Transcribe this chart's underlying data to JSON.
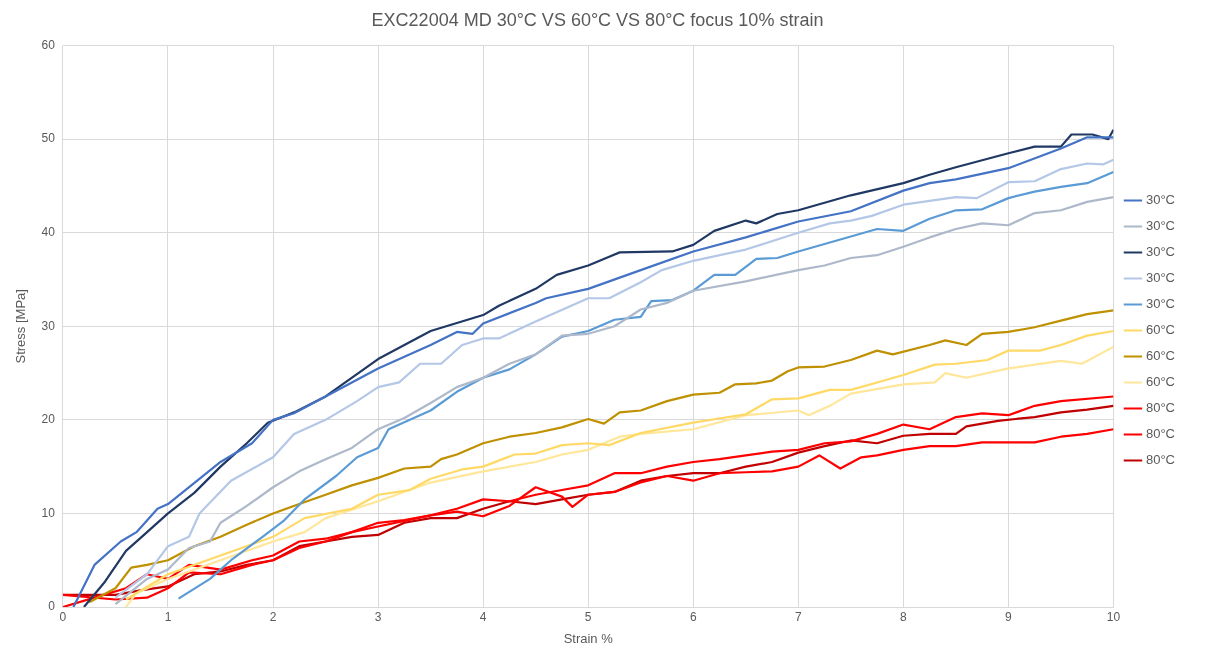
{
  "chart_data": {
    "type": "line",
    "title": "EXC22004 MD 30°C VS 60°C VS 80°C focus 10% strain",
    "xlabel": "Strain %",
    "ylabel": "Stress [MPa]",
    "xlim": [
      0,
      10
    ],
    "xticks": [
      0,
      1,
      2,
      3,
      4,
      5,
      6,
      7,
      8,
      9,
      10
    ],
    "ylim": [
      0,
      60
    ],
    "yticks": [
      0,
      10,
      20,
      30,
      40,
      50,
      60
    ],
    "grid": true,
    "legend": "right",
    "marker": "none",
    "line_style": "solid",
    "series": [
      {
        "name": "30°C",
        "color": "#4472c4",
        "x": [
          0.1,
          0.3,
          0.55,
          0.7,
          0.9,
          1,
          1.5,
          1.8,
          2,
          2.2,
          2.5,
          3,
          3.5,
          3.75,
          3.9,
          4,
          4.5,
          4.6,
          5,
          5.5,
          6,
          6.5,
          7,
          7.5,
          8,
          8.25,
          8.5,
          9,
          9.5,
          9.75,
          10
        ],
        "values": [
          0,
          4.5,
          7,
          8,
          10.5,
          11,
          15.5,
          17.5,
          20,
          20.7,
          22.5,
          25.5,
          28,
          29.4,
          29.2,
          30.3,
          32.5,
          33,
          34,
          36,
          38,
          39.5,
          41.2,
          42.3,
          44.5,
          45.3,
          45.7,
          46.9,
          49,
          50.2,
          50.2
        ]
      },
      {
        "name": "30°C",
        "color": "#adb9ca",
        "x": [
          0.5,
          0.8,
          1,
          1.2,
          1.4,
          1.5,
          1.75,
          2,
          2.25,
          2.5,
          2.75,
          3,
          3.25,
          3.5,
          3.75,
          4,
          4.25,
          4.5,
          4.75,
          5,
          5.25,
          5.5,
          5.75,
          6,
          6.5,
          7,
          7.25,
          7.5,
          7.75,
          8,
          8.25,
          8.5,
          8.75,
          9,
          9.25,
          9.5,
          9.75,
          10
        ],
        "values": [
          0.3,
          3,
          4,
          6.3,
          7,
          9,
          10.8,
          12.8,
          14.5,
          15.8,
          17,
          19,
          20.2,
          21.8,
          23.5,
          24.5,
          26,
          27,
          29,
          29.2,
          30,
          31.8,
          32.5,
          33.8,
          34.8,
          36,
          36.5,
          37.3,
          37.6,
          38.5,
          39.5,
          40.4,
          41,
          40.8,
          42.1,
          42.4,
          43.3,
          43.8
        ]
      },
      {
        "name": "30°C",
        "color": "#203864",
        "x": [
          0.2,
          0.4,
          0.6,
          0.75,
          1,
          1.25,
          1.5,
          1.75,
          1.95,
          2.2,
          2.5,
          3,
          3.5,
          4,
          4.15,
          4.5,
          4.7,
          5,
          5.3,
          5.8,
          6,
          6.2,
          6.5,
          6.6,
          6.8,
          7,
          7.5,
          8,
          8.25,
          8.5,
          9,
          9.25,
          9.5,
          9.6,
          9.8,
          9.95,
          10
        ],
        "values": [
          0,
          2.7,
          6,
          7.5,
          10,
          12.2,
          15,
          17.5,
          19.7,
          20.8,
          22.5,
          26.5,
          29.5,
          31.2,
          32.2,
          34,
          35.5,
          36.5,
          37.9,
          38,
          38.7,
          40.2,
          41.3,
          41,
          42,
          42.4,
          44,
          45.3,
          46.2,
          47,
          48.5,
          49.2,
          49.2,
          50.5,
          50.5,
          50,
          51
        ]
      },
      {
        "name": "30°C",
        "color": "#b4c7e7",
        "x": [
          0.5,
          0.8,
          1,
          1.2,
          1.3,
          1.6,
          2,
          2.2,
          2.5,
          2.8,
          3,
          3.2,
          3.4,
          3.6,
          3.8,
          4,
          4.15,
          4.5,
          5,
          5.2,
          5.5,
          5.7,
          6,
          6.5,
          7,
          7.3,
          7.5,
          7.7,
          8,
          8.5,
          8.7,
          9,
          9.25,
          9.5,
          9.75,
          9.9,
          10
        ],
        "values": [
          1,
          3.5,
          6.5,
          7.5,
          10,
          13.5,
          16,
          18.5,
          20,
          22,
          23.5,
          24,
          26,
          26,
          28,
          28.7,
          28.7,
          30.5,
          33,
          33,
          34.7,
          36,
          37,
          38.2,
          40,
          41,
          41.3,
          41.8,
          43,
          43.8,
          43.7,
          45.4,
          45.5,
          46.8,
          47.4,
          47.3,
          47.8
        ]
      },
      {
        "name": "30°C",
        "color": "#5b9bd5",
        "x": [
          1.1,
          1.4,
          1.6,
          1.9,
          2.1,
          2.3,
          2.6,
          2.8,
          3,
          3.1,
          3.5,
          3.75,
          4,
          4.25,
          4.5,
          4.75,
          5,
          5.25,
          5.5,
          5.6,
          5.8,
          6,
          6.2,
          6.4,
          6.6,
          6.8,
          7,
          7.5,
          7.75,
          8,
          8.25,
          8.5,
          8.75,
          9,
          9.25,
          9.5,
          9.75,
          10
        ],
        "values": [
          0.9,
          3,
          5,
          7.5,
          9.2,
          11.5,
          14,
          16,
          17,
          19,
          21,
          23,
          24.5,
          25.4,
          27,
          28.9,
          29.5,
          30.7,
          31,
          32.7,
          32.8,
          33.8,
          35.5,
          35.5,
          37.2,
          37.3,
          38,
          39.6,
          40.4,
          40.2,
          41.5,
          42.4,
          42.5,
          43.7,
          44.4,
          44.9,
          45.3,
          46.5
        ]
      },
      {
        "name": "60°C",
        "color": "#ffd966",
        "x": [
          0.6,
          1,
          1.5,
          2,
          2.3,
          2.75,
          3,
          3.3,
          3.5,
          3.8,
          4,
          4.3,
          4.5,
          4.75,
          5,
          5.2,
          5.5,
          6,
          6.5,
          6.75,
          7,
          7.3,
          7.5,
          7.75,
          8,
          8.3,
          8.5,
          8.8,
          9,
          9.3,
          9.5,
          9.75,
          10
        ],
        "values": [
          0.8,
          3.5,
          5.5,
          7.5,
          9.5,
          10.5,
          12,
          12.5,
          13.7,
          14.7,
          15,
          16.3,
          16.4,
          17.3,
          17.5,
          17.3,
          18.6,
          19.7,
          20.6,
          22.2,
          22.3,
          23.2,
          23.2,
          24,
          24.8,
          25.9,
          26,
          26.4,
          27.4,
          27.4,
          28,
          29,
          29.5
        ]
      },
      {
        "name": "60°C",
        "color": "#bf9000",
        "x": [
          0.25,
          0.5,
          0.65,
          0.8,
          1,
          1.25,
          1.5,
          1.75,
          2,
          2.25,
          2.5,
          2.75,
          3,
          3.25,
          3.5,
          3.6,
          3.75,
          4,
          4.25,
          4.5,
          4.75,
          5,
          5.15,
          5.3,
          5.5,
          5.75,
          6,
          6.25,
          6.4,
          6.6,
          6.75,
          6.9,
          7,
          7.25,
          7.5,
          7.75,
          7.9,
          8.25,
          8.4,
          8.6,
          8.75,
          9,
          9.25,
          9.5,
          9.75,
          10
        ],
        "values": [
          0.5,
          2,
          4.2,
          4.5,
          5,
          6.5,
          7.5,
          8.8,
          10,
          11,
          12,
          13,
          13.8,
          14.8,
          15,
          15.8,
          16.3,
          17.5,
          18.2,
          18.6,
          19.2,
          20.1,
          19.6,
          20.8,
          21,
          22,
          22.7,
          22.9,
          23.8,
          23.9,
          24.2,
          25.2,
          25.6,
          25.7,
          26.4,
          27.4,
          27,
          28,
          28.5,
          28,
          29.2,
          29.4,
          29.9,
          30.6,
          31.3,
          31.7
        ]
      },
      {
        "name": "60°C",
        "color": "#ffe699",
        "x": [
          0.6,
          0.7,
          1,
          1.5,
          2,
          2.3,
          2.5,
          3,
          3.3,
          3.5,
          4,
          4.5,
          4.75,
          5,
          5.3,
          5.5,
          6,
          6.5,
          7,
          7.1,
          7.3,
          7.5,
          8,
          8.3,
          8.4,
          8.6,
          9,
          9.5,
          9.7,
          10
        ],
        "values": [
          0,
          1.5,
          3,
          5,
          7,
          8,
          9.5,
          11.3,
          12.5,
          13.3,
          14.5,
          15.5,
          16.3,
          16.8,
          18.2,
          18.5,
          19,
          20.5,
          21,
          20.5,
          21.5,
          22.8,
          23.8,
          24,
          25,
          24.5,
          25.5,
          26.3,
          26,
          27.8
        ]
      },
      {
        "name": "80°C",
        "color": "#ff0000",
        "x": [
          0,
          0.3,
          0.6,
          0.8,
          1,
          1.2,
          1.5,
          1.8,
          2,
          2.25,
          2.5,
          2.75,
          3,
          3.25,
          3.5,
          3.75,
          4,
          4.25,
          4.5,
          4.75,
          5,
          5.25,
          5.5,
          5.75,
          6,
          6.25,
          6.5,
          6.75,
          7,
          7.25,
          7.5,
          7.75,
          8,
          8.25,
          8.5,
          8.75,
          9,
          9.25,
          9.5,
          10
        ],
        "values": [
          0,
          1,
          2,
          3.5,
          3,
          4.5,
          4,
          5,
          5.5,
          7,
          7.3,
          8,
          9,
          9.3,
          9.8,
          10.5,
          11.5,
          11.3,
          12,
          12.5,
          13,
          14.3,
          14.3,
          15,
          15.5,
          15.8,
          16.2,
          16.6,
          16.8,
          17.5,
          17.7,
          18.5,
          19.5,
          19,
          20.3,
          20.7,
          20.5,
          21.5,
          22,
          22.5
        ]
      },
      {
        "name": "80°C",
        "color": "#ff0000",
        "x": [
          0,
          0.5,
          0.8,
          1,
          1.2,
          1.5,
          1.8,
          2,
          2.25,
          2.5,
          2.75,
          3,
          3.25,
          3.5,
          3.75,
          4,
          4.25,
          4.5,
          4.75,
          4.85,
          5,
          5.25,
          5.5,
          5.75,
          6,
          6.25,
          6.5,
          6.75,
          7,
          7.2,
          7.4,
          7.6,
          7.75,
          8,
          8.25,
          8.5,
          8.75,
          9,
          9.25,
          9.5,
          9.75,
          10
        ],
        "values": [
          1.3,
          0.8,
          1,
          2,
          3.7,
          3.5,
          4.5,
          5,
          6.3,
          7,
          8,
          8.6,
          9.2,
          9.8,
          10.2,
          9.7,
          10.8,
          12.8,
          11.8,
          10.7,
          12,
          12.3,
          13.3,
          14,
          13.5,
          14.3,
          14.4,
          14.5,
          15,
          16.2,
          14.8,
          16,
          16.2,
          16.8,
          17.2,
          17.2,
          17.6,
          17.6,
          17.6,
          18.2,
          18.5,
          19
        ]
      },
      {
        "name": "80°C",
        "color": "#c00000",
        "x": [
          0,
          0.5,
          0.75,
          1,
          1.25,
          1.5,
          1.75,
          2,
          2.25,
          2.5,
          2.75,
          3,
          3.25,
          3.5,
          3.75,
          4,
          4.25,
          4.5,
          4.75,
          5,
          5.25,
          5.5,
          5.75,
          6,
          6.25,
          6.5,
          6.75,
          7,
          7.25,
          7.5,
          7.75,
          8,
          8.25,
          8.5,
          8.6,
          8.9,
          9.25,
          9.5,
          9.75,
          10
        ],
        "values": [
          1.3,
          1.3,
          1.8,
          2.2,
          3.5,
          3.8,
          4.5,
          5,
          6.5,
          7,
          7.5,
          7.7,
          9,
          9.5,
          9.5,
          10.5,
          11.3,
          11,
          11.5,
          12,
          12.3,
          13.5,
          14,
          14.3,
          14.3,
          15,
          15.5,
          16.5,
          17.2,
          17.8,
          17.5,
          18.3,
          18.5,
          18.5,
          19.3,
          19.9,
          20.3,
          20.8,
          21.1,
          21.5
        ]
      }
    ]
  }
}
